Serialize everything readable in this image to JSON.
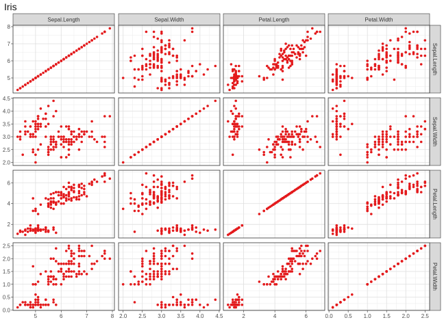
{
  "title": "Iris",
  "chart_data": {
    "type": "scatter",
    "layout": "pairs-matrix",
    "variables": [
      "Sepal.Length",
      "Sepal.Width",
      "Petal.Length",
      "Petal.Width"
    ],
    "axes": {
      "Sepal.Length": {
        "range": [
          4.3,
          7.9
        ],
        "ticks": [
          5,
          6,
          7,
          8
        ],
        "tick_labels": [
          "5",
          "6",
          "7",
          "8"
        ]
      },
      "Sepal.Width": {
        "range": [
          2.0,
          4.4
        ],
        "ticks": [
          2.0,
          2.5,
          3.0,
          3.5,
          4.0,
          4.5
        ],
        "tick_labels": [
          "2.0",
          "2.5",
          "3.0",
          "3.5",
          "4.0",
          "4.5"
        ]
      },
      "Petal.Length": {
        "range": [
          1.0,
          6.9
        ],
        "ticks": [
          2,
          4,
          6
        ],
        "tick_labels": [
          "2",
          "4",
          "6"
        ]
      },
      "Petal.Width": {
        "range": [
          0.1,
          2.5
        ],
        "ticks": [
          0.0,
          0.5,
          1.0,
          1.5,
          2.0,
          2.5
        ],
        "tick_labels": [
          "0.0",
          "0.5",
          "1.0",
          "1.5",
          "2.0",
          "2.5"
        ]
      }
    },
    "grid": true,
    "point_color": "#e31a1c",
    "strip_color": "#d9d9d9",
    "observations": [
      [
        5.1,
        3.5,
        1.4,
        0.2
      ],
      [
        4.9,
        3.0,
        1.4,
        0.2
      ],
      [
        4.7,
        3.2,
        1.3,
        0.2
      ],
      [
        4.6,
        3.1,
        1.5,
        0.2
      ],
      [
        5.0,
        3.6,
        1.4,
        0.2
      ],
      [
        5.4,
        3.9,
        1.7,
        0.4
      ],
      [
        4.6,
        3.4,
        1.4,
        0.3
      ],
      [
        5.0,
        3.4,
        1.5,
        0.2
      ],
      [
        4.4,
        2.9,
        1.4,
        0.2
      ],
      [
        4.9,
        3.1,
        1.5,
        0.1
      ],
      [
        5.4,
        3.7,
        1.5,
        0.2
      ],
      [
        4.8,
        3.4,
        1.6,
        0.2
      ],
      [
        4.8,
        3.0,
        1.4,
        0.1
      ],
      [
        4.3,
        3.0,
        1.1,
        0.1
      ],
      [
        5.8,
        4.0,
        1.2,
        0.2
      ],
      [
        5.7,
        4.4,
        1.5,
        0.4
      ],
      [
        5.4,
        3.9,
        1.3,
        0.4
      ],
      [
        5.1,
        3.5,
        1.4,
        0.3
      ],
      [
        5.7,
        3.8,
        1.7,
        0.3
      ],
      [
        5.1,
        3.8,
        1.5,
        0.3
      ],
      [
        5.4,
        3.4,
        1.7,
        0.2
      ],
      [
        5.1,
        3.7,
        1.5,
        0.4
      ],
      [
        4.6,
        3.6,
        1.0,
        0.2
      ],
      [
        5.1,
        3.3,
        1.7,
        0.5
      ],
      [
        4.8,
        3.4,
        1.9,
        0.2
      ],
      [
        5.0,
        3.0,
        1.6,
        0.2
      ],
      [
        5.0,
        3.4,
        1.6,
        0.4
      ],
      [
        5.2,
        3.5,
        1.5,
        0.2
      ],
      [
        5.2,
        3.4,
        1.4,
        0.2
      ],
      [
        4.7,
        3.2,
        1.6,
        0.2
      ],
      [
        4.8,
        3.1,
        1.6,
        0.2
      ],
      [
        5.4,
        3.4,
        1.5,
        0.4
      ],
      [
        5.2,
        4.1,
        1.5,
        0.1
      ],
      [
        5.5,
        4.2,
        1.4,
        0.2
      ],
      [
        4.9,
        3.1,
        1.5,
        0.2
      ],
      [
        5.0,
        3.2,
        1.2,
        0.2
      ],
      [
        5.5,
        3.5,
        1.3,
        0.2
      ],
      [
        4.9,
        3.6,
        1.4,
        0.1
      ],
      [
        4.4,
        3.0,
        1.3,
        0.2
      ],
      [
        5.1,
        3.4,
        1.5,
        0.2
      ],
      [
        5.0,
        3.5,
        1.3,
        0.3
      ],
      [
        4.5,
        2.3,
        1.3,
        0.3
      ],
      [
        4.4,
        3.2,
        1.3,
        0.2
      ],
      [
        5.0,
        3.5,
        1.6,
        0.6
      ],
      [
        5.1,
        3.8,
        1.9,
        0.4
      ],
      [
        4.8,
        3.0,
        1.4,
        0.3
      ],
      [
        5.1,
        3.8,
        1.6,
        0.2
      ],
      [
        4.6,
        3.2,
        1.4,
        0.2
      ],
      [
        5.3,
        3.7,
        1.5,
        0.2
      ],
      [
        5.0,
        3.3,
        1.4,
        0.2
      ],
      [
        7.0,
        3.2,
        4.7,
        1.4
      ],
      [
        6.4,
        3.2,
        4.5,
        1.5
      ],
      [
        6.9,
        3.1,
        4.9,
        1.5
      ],
      [
        5.5,
        2.3,
        4.0,
        1.3
      ],
      [
        6.5,
        2.8,
        4.6,
        1.5
      ],
      [
        5.7,
        2.8,
        4.5,
        1.3
      ],
      [
        6.3,
        3.3,
        4.7,
        1.6
      ],
      [
        4.9,
        2.4,
        3.3,
        1.0
      ],
      [
        6.6,
        2.9,
        4.6,
        1.3
      ],
      [
        5.2,
        2.7,
        3.9,
        1.4
      ],
      [
        5.0,
        2.0,
        3.5,
        1.0
      ],
      [
        5.9,
        3.0,
        4.2,
        1.5
      ],
      [
        6.0,
        2.2,
        4.0,
        1.0
      ],
      [
        6.1,
        2.9,
        4.7,
        1.4
      ],
      [
        5.6,
        2.9,
        3.6,
        1.3
      ],
      [
        6.7,
        3.1,
        4.4,
        1.4
      ],
      [
        5.6,
        3.0,
        4.5,
        1.5
      ],
      [
        5.8,
        2.7,
        4.1,
        1.0
      ],
      [
        6.2,
        2.2,
        4.5,
        1.5
      ],
      [
        5.6,
        2.5,
        3.9,
        1.1
      ],
      [
        5.9,
        3.2,
        4.8,
        1.8
      ],
      [
        6.1,
        2.8,
        4.0,
        1.3
      ],
      [
        6.3,
        2.5,
        4.9,
        1.5
      ],
      [
        6.1,
        2.8,
        4.7,
        1.2
      ],
      [
        6.4,
        2.9,
        4.3,
        1.3
      ],
      [
        6.6,
        3.0,
        4.4,
        1.4
      ],
      [
        6.8,
        2.8,
        4.8,
        1.4
      ],
      [
        6.7,
        3.0,
        5.0,
        1.7
      ],
      [
        6.0,
        2.9,
        4.5,
        1.5
      ],
      [
        5.7,
        2.6,
        3.5,
        1.0
      ],
      [
        5.5,
        2.4,
        3.8,
        1.1
      ],
      [
        5.5,
        2.4,
        3.7,
        1.0
      ],
      [
        5.8,
        2.7,
        3.9,
        1.2
      ],
      [
        6.0,
        2.7,
        5.1,
        1.6
      ],
      [
        5.4,
        3.0,
        4.5,
        1.5
      ],
      [
        6.0,
        3.4,
        4.5,
        1.6
      ],
      [
        6.7,
        3.1,
        4.7,
        1.5
      ],
      [
        6.3,
        2.3,
        4.4,
        1.3
      ],
      [
        5.6,
        3.0,
        4.1,
        1.3
      ],
      [
        5.5,
        2.5,
        4.0,
        1.3
      ],
      [
        5.5,
        2.6,
        4.4,
        1.2
      ],
      [
        6.1,
        3.0,
        4.6,
        1.4
      ],
      [
        5.8,
        2.6,
        4.0,
        1.2
      ],
      [
        5.0,
        2.3,
        3.3,
        1.0
      ],
      [
        5.6,
        2.7,
        4.2,
        1.3
      ],
      [
        5.7,
        3.0,
        4.2,
        1.2
      ],
      [
        5.7,
        2.9,
        4.2,
        1.3
      ],
      [
        6.2,
        2.9,
        4.3,
        1.3
      ],
      [
        5.1,
        2.5,
        3.0,
        1.1
      ],
      [
        5.7,
        2.8,
        4.1,
        1.3
      ],
      [
        6.3,
        3.3,
        6.0,
        2.5
      ],
      [
        5.8,
        2.7,
        5.1,
        1.9
      ],
      [
        7.1,
        3.0,
        5.9,
        2.1
      ],
      [
        6.3,
        2.9,
        5.6,
        1.8
      ],
      [
        6.5,
        3.0,
        5.8,
        2.2
      ],
      [
        7.6,
        3.0,
        6.6,
        2.1
      ],
      [
        4.9,
        2.5,
        4.5,
        1.7
      ],
      [
        7.3,
        2.9,
        6.3,
        1.8
      ],
      [
        6.7,
        2.5,
        5.8,
        1.8
      ],
      [
        7.2,
        3.6,
        6.1,
        2.5
      ],
      [
        6.5,
        3.2,
        5.1,
        2.0
      ],
      [
        6.4,
        2.7,
        5.3,
        1.9
      ],
      [
        6.8,
        3.0,
        5.5,
        2.1
      ],
      [
        5.7,
        2.5,
        5.0,
        2.0
      ],
      [
        5.8,
        2.8,
        5.1,
        2.4
      ],
      [
        6.4,
        3.2,
        5.3,
        2.3
      ],
      [
        6.5,
        3.0,
        5.5,
        1.8
      ],
      [
        7.7,
        3.8,
        6.7,
        2.2
      ],
      [
        7.7,
        2.6,
        6.9,
        2.3
      ],
      [
        6.0,
        2.2,
        5.0,
        1.5
      ],
      [
        6.9,
        3.2,
        5.7,
        2.3
      ],
      [
        5.6,
        2.8,
        4.9,
        2.0
      ],
      [
        7.7,
        2.8,
        6.7,
        2.0
      ],
      [
        6.3,
        2.7,
        4.9,
        1.8
      ],
      [
        6.7,
        3.3,
        5.7,
        2.1
      ],
      [
        7.2,
        3.2,
        6.0,
        1.8
      ],
      [
        6.2,
        2.8,
        4.8,
        1.8
      ],
      [
        6.1,
        3.0,
        4.9,
        1.8
      ],
      [
        6.4,
        2.8,
        5.6,
        2.1
      ],
      [
        7.2,
        3.0,
        5.8,
        1.6
      ],
      [
        7.4,
        2.8,
        6.1,
        1.9
      ],
      [
        7.9,
        3.8,
        6.4,
        2.0
      ],
      [
        6.4,
        2.8,
        5.6,
        2.2
      ],
      [
        6.3,
        2.8,
        5.1,
        1.5
      ],
      [
        6.1,
        2.6,
        5.6,
        1.4
      ],
      [
        7.7,
        3.0,
        6.1,
        2.3
      ],
      [
        6.3,
        3.4,
        5.6,
        2.4
      ],
      [
        6.4,
        3.1,
        5.5,
        1.8
      ],
      [
        6.0,
        3.0,
        4.8,
        1.8
      ],
      [
        6.9,
        3.1,
        5.4,
        2.1
      ],
      [
        6.7,
        3.1,
        5.6,
        2.4
      ],
      [
        6.9,
        3.1,
        5.1,
        2.3
      ],
      [
        5.8,
        2.7,
        5.1,
        1.9
      ],
      [
        6.8,
        3.2,
        5.9,
        2.3
      ],
      [
        6.7,
        3.3,
        5.7,
        2.5
      ],
      [
        6.7,
        3.0,
        5.2,
        2.3
      ],
      [
        6.3,
        2.5,
        5.0,
        1.9
      ],
      [
        6.5,
        3.0,
        5.2,
        2.0
      ],
      [
        6.2,
        3.4,
        5.4,
        2.3
      ],
      [
        5.9,
        3.0,
        5.1,
        1.8
      ]
    ]
  }
}
